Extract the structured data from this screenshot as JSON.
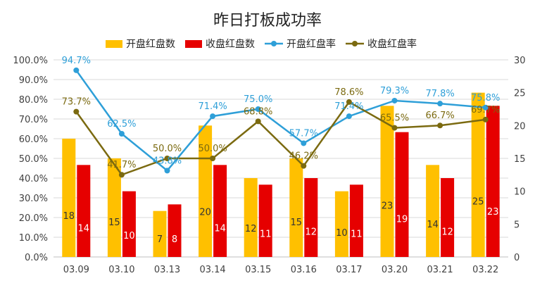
{
  "chart_data": {
    "type": "bar",
    "title": "昨日打板成功率",
    "categories": [
      "03.09",
      "03.10",
      "03.13",
      "03.14",
      "03.15",
      "03.16",
      "03.17",
      "03.20",
      "03.21",
      "03.22"
    ],
    "bar_series": [
      {
        "name": "开盘红盘数",
        "color": "#FFC000",
        "values": [
          18,
          15,
          7,
          20,
          12,
          15,
          10,
          23,
          14,
          25
        ]
      },
      {
        "name": "收盘红盘数",
        "color": "#E60000",
        "values": [
          14,
          10,
          8,
          14,
          11,
          12,
          11,
          19,
          12,
          23
        ]
      }
    ],
    "line_series": [
      {
        "name": "开盘红盘率",
        "color": "#2E9FD8",
        "values": [
          94.7,
          62.5,
          43.8,
          71.4,
          75.0,
          57.7,
          71.4,
          79.3,
          77.8,
          75.8
        ],
        "labels": [
          "94.7%",
          "62.5%",
          "43.8%",
          "71.4%",
          "75.0%",
          "57.7%",
          "71.4%",
          "79.3%",
          "77.8%",
          "75.8%"
        ]
      },
      {
        "name": "收盘红盘率",
        "color": "#7B6A10",
        "values": [
          73.7,
          41.7,
          50.0,
          50.0,
          68.8,
          46.2,
          78.6,
          65.5,
          66.7,
          69.7
        ],
        "labels": [
          "73.7%",
          "41.7%",
          "50.0%",
          "50.0%",
          "68.8%",
          "46.2%",
          "78.6%",
          "65.5%",
          "66.7%",
          "69.7%"
        ]
      }
    ],
    "y_left": {
      "min": 0,
      "max": 100,
      "ticks": [
        "0.0%",
        "10.0%",
        "20.0%",
        "30.0%",
        "40.0%",
        "50.0%",
        "60.0%",
        "70.0%",
        "80.0%",
        "90.0%",
        "100.0%"
      ]
    },
    "y_right": {
      "min": 0,
      "max": 30,
      "ticks": [
        "0",
        "5",
        "10",
        "15",
        "20",
        "25",
        "30"
      ]
    },
    "grid": true,
    "legend_position": "top"
  }
}
